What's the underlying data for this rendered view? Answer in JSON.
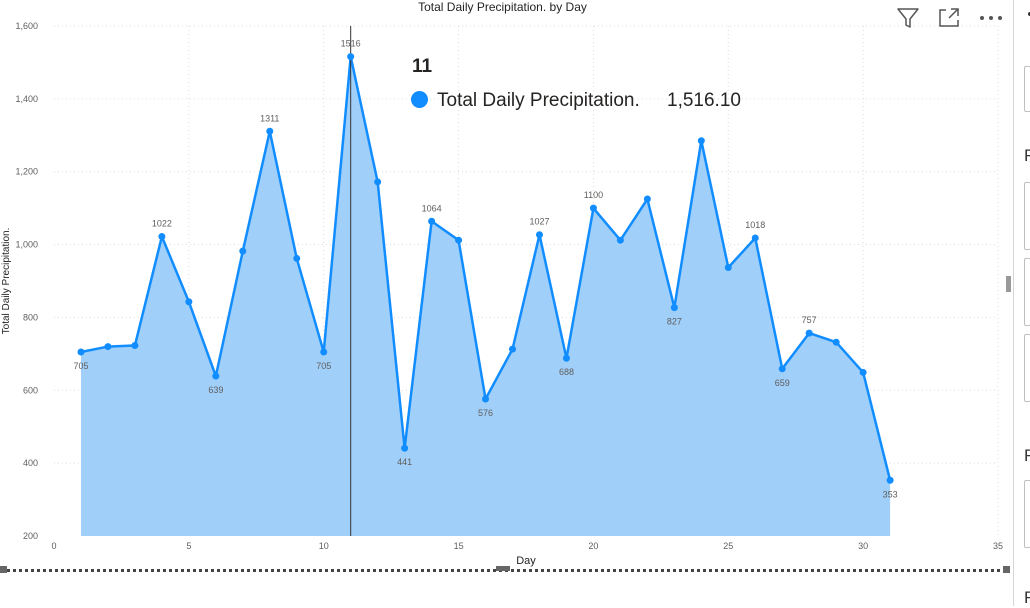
{
  "chart_data": {
    "type": "area",
    "title": "Total Daily Precipitation. by Day",
    "xlabel": "Day",
    "ylabel": "Total Daily Precipitation.",
    "x": [
      1,
      2,
      3,
      4,
      5,
      6,
      7,
      8,
      9,
      10,
      11,
      12,
      13,
      14,
      15,
      16,
      17,
      18,
      19,
      20,
      21,
      22,
      23,
      24,
      25,
      26,
      27,
      28,
      29,
      30,
      31
    ],
    "series": [
      {
        "values": [
          705,
          720,
          723,
          1022,
          843,
          639,
          982,
          1311,
          962,
          705,
          1516,
          1172,
          441,
          1064,
          1012,
          576,
          713,
          1027,
          688,
          1100,
          1012,
          1125,
          827,
          1285,
          937,
          1018,
          659,
          757,
          732,
          649,
          353
        ],
        "color": "#118DFF",
        "fill": "#A0CFFA"
      }
    ],
    "data_labels": [
      {
        "x": 1,
        "text": "705",
        "pos": "below"
      },
      {
        "x": 4,
        "text": "1022",
        "pos": "above"
      },
      {
        "x": 6,
        "text": "639",
        "pos": "below"
      },
      {
        "x": 8,
        "text": "1311",
        "pos": "above"
      },
      {
        "x": 10,
        "text": "705",
        "pos": "below"
      },
      {
        "x": 11,
        "text": "1516",
        "pos": "above"
      },
      {
        "x": 13,
        "text": "441",
        "pos": "below"
      },
      {
        "x": 14,
        "text": "1064",
        "pos": "above"
      },
      {
        "x": 16,
        "text": "576",
        "pos": "below"
      },
      {
        "x": 18,
        "text": "1027",
        "pos": "above"
      },
      {
        "x": 19,
        "text": "688",
        "pos": "below"
      },
      {
        "x": 20,
        "text": "1100",
        "pos": "above"
      },
      {
        "x": 23,
        "text": "827",
        "pos": "below"
      },
      {
        "x": 26,
        "text": "1018",
        "pos": "above"
      },
      {
        "x": 27,
        "text": "659",
        "pos": "below"
      },
      {
        "x": 28,
        "text": "757",
        "pos": "above"
      },
      {
        "x": 31,
        "text": "353",
        "pos": "below"
      }
    ],
    "xlim": [
      0,
      35
    ],
    "ylim": [
      200,
      1600
    ],
    "xticks": [
      0,
      5,
      10,
      15,
      20,
      25,
      30,
      35
    ],
    "yticks": [
      200,
      400,
      600,
      800,
      1000,
      1200,
      1400,
      1600
    ],
    "ytick_labels": [
      "200",
      "400",
      "600",
      "800",
      "1,000",
      "1,200",
      "1,400",
      "1,600"
    ],
    "grid": true,
    "hover_x": 11
  },
  "tooltip": {
    "title": "11",
    "series_name": "Total Daily Precipitation.",
    "value": "1,516.10",
    "color": "#118DFF"
  },
  "header_icons": [
    "filter-icon",
    "focus-mode-icon",
    "more-options-icon"
  ],
  "right_panel": {
    "letters": [
      "F",
      "F",
      "F"
    ]
  }
}
